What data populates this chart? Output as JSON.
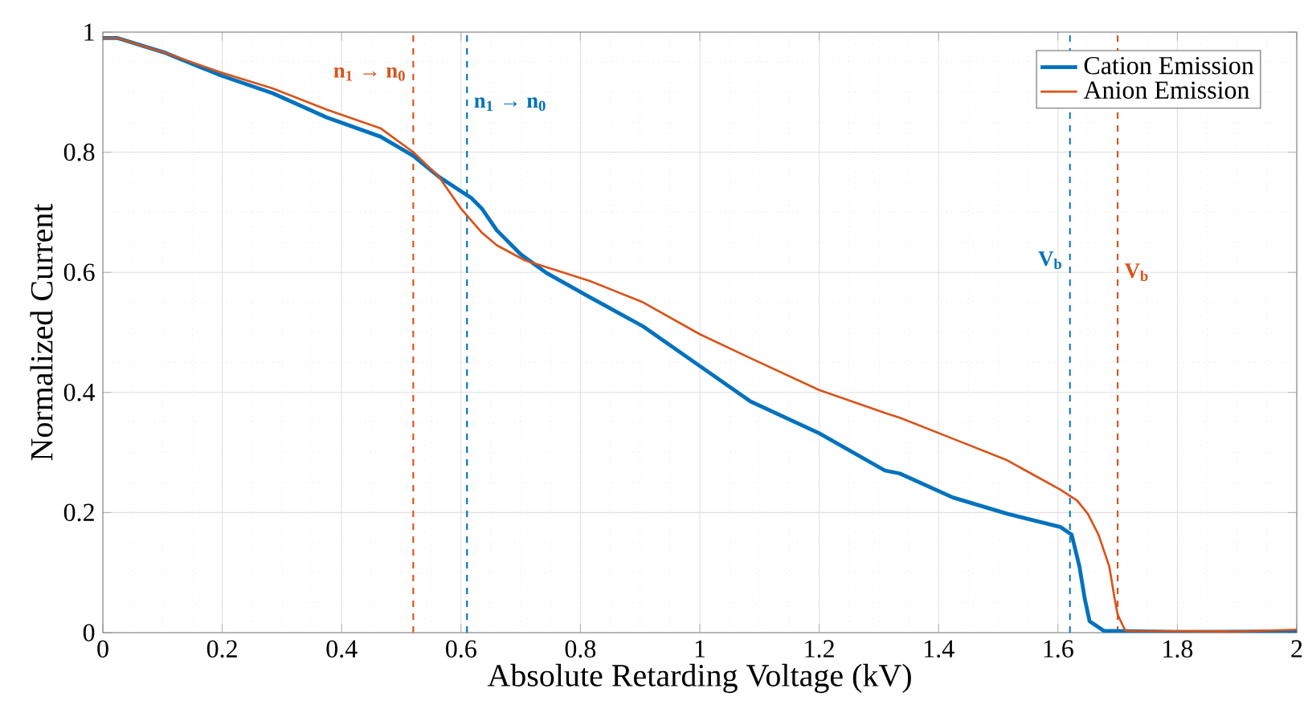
{
  "chart_data": {
    "type": "line",
    "xlabel": "Absolute Retarding Voltage (kV)",
    "ylabel": "Normalized Current",
    "xlim": [
      0,
      2
    ],
    "ylim": [
      0,
      1
    ],
    "xticks": [
      0,
      0.2,
      0.4,
      0.6,
      0.8,
      1,
      1.2,
      1.4,
      1.6,
      1.8,
      2
    ],
    "yticks": [
      0,
      0.2,
      0.4,
      0.6,
      0.8,
      1
    ],
    "grid": true,
    "legend": "top right",
    "line_style": "solid",
    "marker": "none",
    "series": [
      {
        "name": "Cation Emission",
        "color": "#0072bd",
        "x": [
          0,
          0.025,
          0.106,
          0.197,
          0.285,
          0.375,
          0.465,
          0.52,
          0.563,
          0.617,
          0.635,
          0.66,
          0.7,
          0.743,
          0.815,
          0.905,
          1.0,
          1.085,
          1.2,
          1.31,
          1.335,
          1.424,
          1.515,
          1.604,
          1.623,
          1.636,
          1.645,
          1.653,
          1.677,
          1.8,
          2.0
        ],
        "values": [
          0.99,
          0.99,
          0.965,
          0.928,
          0.898,
          0.858,
          0.826,
          0.794,
          0.759,
          0.724,
          0.706,
          0.67,
          0.63,
          0.599,
          0.559,
          0.51,
          0.444,
          0.385,
          0.332,
          0.27,
          0.265,
          0.225,
          0.198,
          0.176,
          0.163,
          0.11,
          0.056,
          0.019,
          0.003,
          0.001,
          0.002
        ]
      },
      {
        "name": "Anion Emission",
        "color": "#d95319",
        "x": [
          0,
          0.025,
          0.106,
          0.197,
          0.285,
          0.375,
          0.465,
          0.52,
          0.563,
          0.6,
          0.635,
          0.66,
          0.707,
          0.815,
          0.905,
          1.0,
          1.085,
          1.2,
          1.31,
          1.335,
          1.424,
          1.515,
          1.604,
          1.632,
          1.65,
          1.668,
          1.686,
          1.695,
          1.7,
          1.713,
          1.9,
          2.0
        ],
        "values": [
          0.99,
          0.99,
          0.965,
          0.933,
          0.906,
          0.871,
          0.84,
          0.8,
          0.759,
          0.706,
          0.666,
          0.645,
          0.62,
          0.586,
          0.55,
          0.497,
          0.457,
          0.404,
          0.366,
          0.358,
          0.323,
          0.287,
          0.238,
          0.22,
          0.198,
          0.163,
          0.11,
          0.056,
          0.03,
          0.003,
          0.002,
          0.005
        ]
      }
    ],
    "ref_lines": [
      {
        "axis": "x",
        "value": 0.52,
        "label": "n$_{1}$ → n$_{0}$",
        "color": "#d95319",
        "line_style": "dashed"
      },
      {
        "axis": "x",
        "value": 0.61,
        "label": "n$_{1}$ → n$_{0}$",
        "color": "#0072bd",
        "line_style": "dashed"
      },
      {
        "axis": "x",
        "value": 1.62,
        "label": "V$_{b}$",
        "color": "#0072bd",
        "line_style": "dashed"
      },
      {
        "axis": "x",
        "value": 1.7,
        "label": "V$_{b}$",
        "color": "#d95319",
        "line_style": "dashed"
      }
    ]
  }
}
